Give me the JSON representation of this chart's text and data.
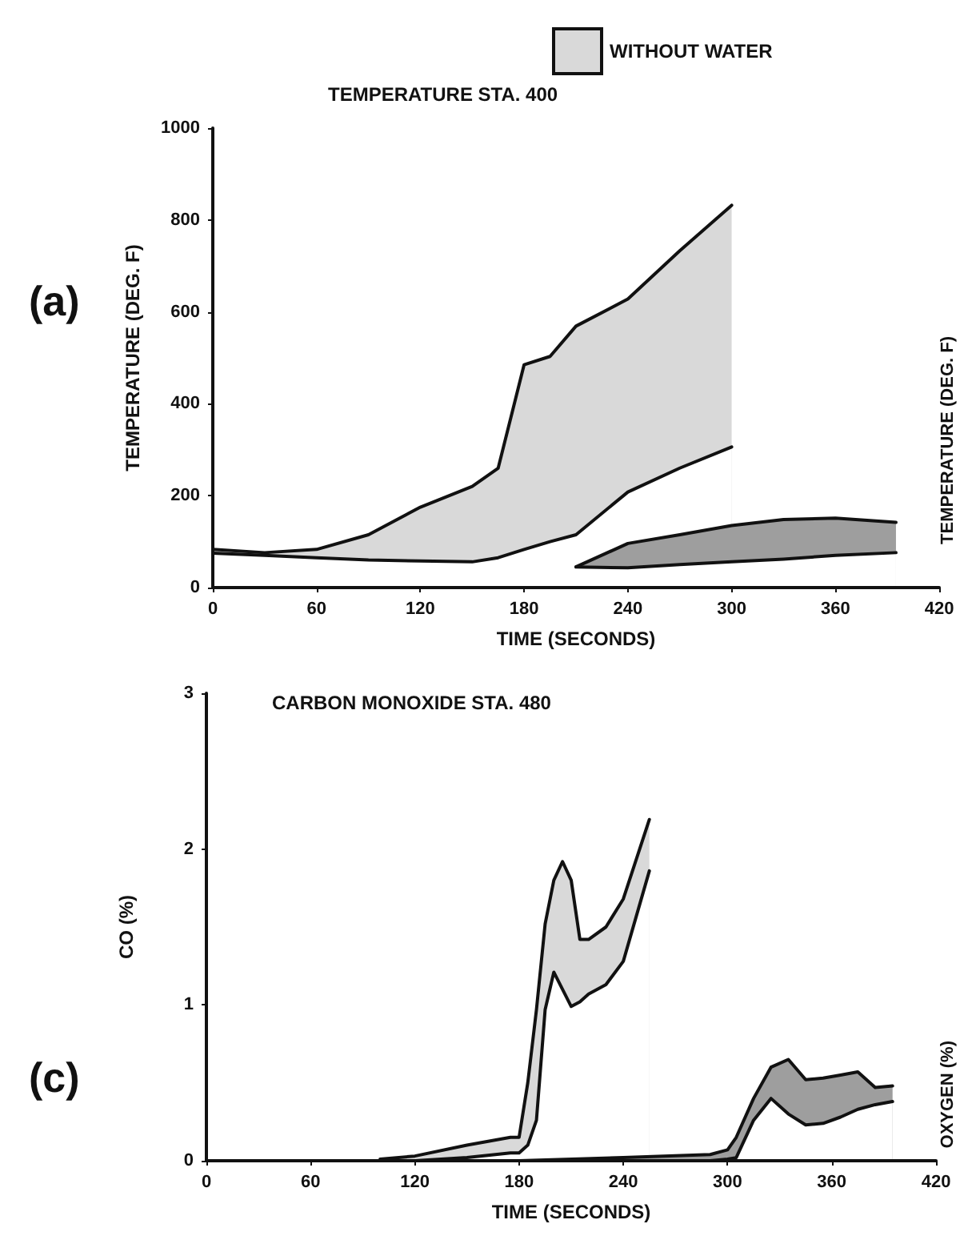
{
  "chart_data": [
    {
      "type": "area",
      "title": "TEMPERATURE STA. 400",
      "xlabel": "TIME (SECONDS)",
      "ylabel": "TEMPERATURE (DEG. F)",
      "annotations": [
        "(a)",
        "TEMPERATURE (DEG. F)"
      ],
      "xlim": [
        0,
        420
      ],
      "xticks": [
        0,
        60,
        120,
        180,
        240,
        300,
        360,
        420
      ],
      "ylim": [
        0,
        1000
      ],
      "yticks": [
        0,
        200,
        400,
        600,
        800,
        1000
      ],
      "legend": "top",
      "grid": false,
      "series": [
        {
          "name": "WITHOUT WATER",
          "color": "#d9d9d9",
          "x": [
            0,
            30,
            60,
            90,
            120,
            150,
            165,
            180,
            195,
            210,
            240,
            270,
            300
          ],
          "values": [
            83,
            76,
            83,
            115,
            175,
            220,
            260,
            485,
            503,
            569,
            628,
            733,
            832
          ]
        },
        {
          "color": "#ffffff",
          "x": [
            0,
            30,
            60,
            90,
            120,
            150,
            165,
            180,
            195,
            210,
            240,
            270,
            300
          ],
          "values": [
            75,
            70,
            65,
            60,
            58,
            56,
            65,
            83,
            100,
            115,
            208,
            260,
            306
          ]
        },
        {
          "color": "#9e9e9e",
          "x": [
            210,
            240,
            270,
            300,
            330,
            360,
            395
          ],
          "values": [
            45,
            96,
            115,
            135,
            148,
            151,
            142
          ]
        },
        {
          "color": "#ffffff",
          "x": [
            210,
            240,
            270,
            300,
            330,
            360,
            395
          ],
          "values": [
            45,
            43,
            50,
            56,
            62,
            70,
            76
          ]
        }
      ]
    },
    {
      "type": "area",
      "title": "CARBON MONOXIDE STA. 480",
      "xlabel": "TIME (SECONDS)",
      "ylabel": "CO (%)",
      "annotations": [
        "(c)",
        "OXYGEN (%)"
      ],
      "xlim": [
        0,
        420
      ],
      "xticks": [
        0,
        60,
        120,
        180,
        240,
        300,
        360,
        420
      ],
      "ylim": [
        0,
        3
      ],
      "yticks": [
        0,
        1,
        2,
        3
      ],
      "grid": false,
      "series": [
        {
          "color": "#d9d9d9",
          "x": [
            100,
            120,
            150,
            175,
            180,
            185,
            190,
            195,
            200,
            205,
            210,
            215,
            220,
            230,
            240,
            255
          ],
          "values": [
            0.01,
            0.03,
            0.1,
            0.15,
            0.15,
            0.5,
            0.97,
            1.52,
            1.8,
            1.92,
            1.8,
            1.42,
            1.42,
            1.5,
            1.68,
            2.19
          ]
        },
        {
          "color": "#ffffff",
          "x": [
            100,
            120,
            150,
            175,
            180,
            185,
            190,
            195,
            200,
            205,
            210,
            215,
            220,
            230,
            240,
            255
          ],
          "values": [
            0,
            0,
            0.02,
            0.05,
            0.05,
            0.1,
            0.26,
            0.97,
            1.21,
            1.1,
            0.99,
            1.02,
            1.07,
            1.13,
            1.28,
            1.86
          ]
        },
        {
          "color": "#9e9e9e",
          "x": [
            180,
            240,
            290,
            300,
            305,
            315,
            325,
            335,
            345,
            355,
            365,
            375,
            385,
            395
          ],
          "values": [
            0,
            0.02,
            0.04,
            0.07,
            0.15,
            0.4,
            0.6,
            0.65,
            0.52,
            0.53,
            0.55,
            0.57,
            0.47,
            0.48
          ]
        },
        {
          "color": "#ffffff",
          "x": [
            180,
            240,
            290,
            300,
            305,
            315,
            325,
            335,
            345,
            355,
            365,
            375,
            385,
            395
          ],
          "values": [
            0,
            0,
            0,
            0.01,
            0.02,
            0.26,
            0.4,
            0.3,
            0.23,
            0.24,
            0.28,
            0.33,
            0.36,
            0.38
          ]
        }
      ]
    }
  ]
}
